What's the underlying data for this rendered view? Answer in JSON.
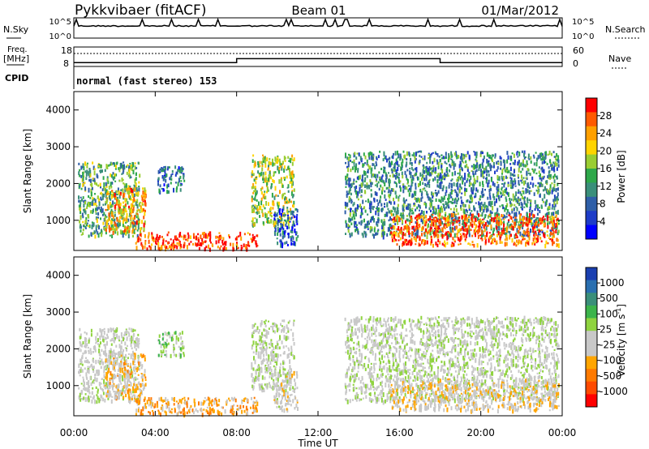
{
  "header": {
    "station": "Pykkvibaer (fitACF)",
    "beam": "Beam 01",
    "date": "01/Mar/2012"
  },
  "strip1": {
    "left_label": "N.Sky",
    "left_ticks": [
      "10^5",
      "10^0"
    ],
    "right_ticks": [
      "10^5",
      "10^0"
    ],
    "right_label": "N.Search"
  },
  "strip2": {
    "left_label_1": "Freq.",
    "left_label_2": "[MHz]",
    "left_ticks": [
      "18",
      "8"
    ],
    "right_ticks": [
      "60",
      "0"
    ],
    "right_label": "Nave",
    "cpid_label": "CPID",
    "mode_text": "normal (fast stereo) 153"
  },
  "panels": {
    "power": {
      "ylabel": "Slant Range [km]",
      "colorbar_label": "Power [dB]",
      "colorbar_ticks": [
        "28",
        "24",
        "20",
        "16",
        "12",
        "8",
        "4"
      ],
      "colors": [
        "#ff0000",
        "#ff5a00",
        "#ffa000",
        "#ffd400",
        "#9acd32",
        "#2ea84a",
        "#3a8f7a",
        "#2f5fa8",
        "#1e3cc8",
        "#0000ff"
      ]
    },
    "velocity": {
      "ylabel": "Slant Range [km]",
      "colorbar_label": "Velocity [m s",
      "colorbar_sup": "-1",
      "colorbar_label_end": "]",
      "colorbar_ticks": [
        "1000",
        "500",
        "100",
        "25",
        "-25",
        "-100",
        "-500",
        "-1000"
      ],
      "colors": [
        "#1a3fb0",
        "#2a6fb0",
        "#3a8f7a",
        "#3cb44b",
        "#8fd33f",
        "#c8c8c8",
        "#c8c8c8",
        "#ffa500",
        "#ff7a00",
        "#ff4a00",
        "#ff0000"
      ]
    }
  },
  "chart_data": {
    "type": "heatmap",
    "x_axis": {
      "label": "Time UT",
      "ticks": [
        "00:00",
        "04:00",
        "08:00",
        "12:00",
        "16:00",
        "20:00",
        "00:00"
      ],
      "range_hours": [
        0,
        24
      ]
    },
    "y_axis": {
      "label": "Slant Range [km]",
      "ticks": [
        1000,
        2000,
        3000,
        4000
      ],
      "range": [
        180,
        4500
      ]
    },
    "frequency_steps": [
      {
        "start_h": 0,
        "end_h": 8,
        "mhz": 10
      },
      {
        "start_h": 8,
        "end_h": 18,
        "mhz": 12
      },
      {
        "start_h": 18,
        "end_h": 24,
        "mhz": 10
      }
    ],
    "echo_regions": [
      {
        "t0": 0.2,
        "t1": 3.2,
        "r0": 600,
        "r1": 2600,
        "power": 14,
        "velocity": -50
      },
      {
        "t0": 1.5,
        "t1": 3.5,
        "r0": 700,
        "r1": 1900,
        "power": 22,
        "velocity": -300
      },
      {
        "t0": 3.0,
        "t1": 9.0,
        "r0": 250,
        "r1": 700,
        "power": 27,
        "velocity": -400
      },
      {
        "t0": 4.1,
        "t1": 5.4,
        "r0": 1800,
        "r1": 2500,
        "power": 10,
        "velocity": 120
      },
      {
        "t0": 8.7,
        "t1": 10.8,
        "r0": 900,
        "r1": 2800,
        "power": 18,
        "velocity": -10
      },
      {
        "t0": 9.8,
        "t1": 11.0,
        "r0": 350,
        "r1": 1400,
        "power": 8,
        "velocity": -120
      },
      {
        "t0": 13.3,
        "t1": 23.8,
        "r0": 600,
        "r1": 2900,
        "power": 12,
        "velocity": 10
      },
      {
        "t0": 15.5,
        "t1": 23.8,
        "r0": 350,
        "r1": 1200,
        "power": 26,
        "velocity": -200
      }
    ]
  }
}
